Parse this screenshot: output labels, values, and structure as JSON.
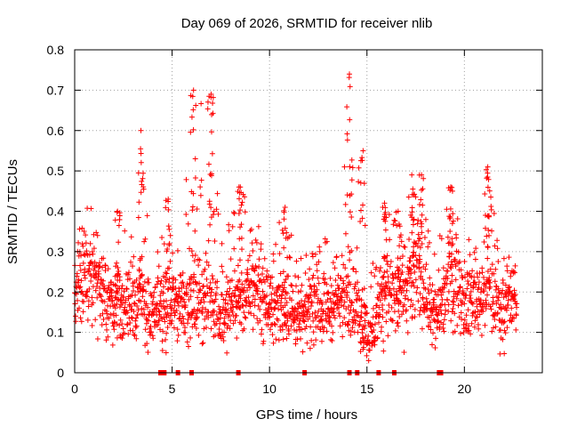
{
  "chart_data": {
    "type": "scatter",
    "title": "Day 069 of 2026, SRMTID for receiver nlib",
    "xlabel": "GPS time / hours",
    "ylabel": "SRMTID / TECUs",
    "xlim": [
      0,
      24
    ],
    "ylim": [
      0,
      0.8
    ],
    "xticks": [
      0,
      5,
      10,
      15,
      20
    ],
    "yticks": [
      0,
      0.1,
      0.2,
      0.3,
      0.4,
      0.5,
      0.6,
      0.7,
      0.8
    ],
    "xtick_labels": [
      "0",
      "5",
      "10",
      "15",
      "20"
    ],
    "ytick_labels": [
      "0",
      "0.1",
      "0.2",
      "0.3",
      "0.4",
      "0.5",
      "0.6",
      "0.7",
      "0.8"
    ],
    "grid": true,
    "marker": "+",
    "color": "#ff0000",
    "zero_markers_x": [
      4.4,
      4.6,
      5.3,
      6.0,
      8.4,
      11.8,
      14.1,
      14.5,
      15.6,
      16.4,
      18.7,
      18.8
    ],
    "envelope": [
      {
        "x": 0.0,
        "base": 0.2,
        "spread": 0.08,
        "peak": 0.32
      },
      {
        "x": 0.7,
        "base": 0.24,
        "spread": 0.09,
        "peak": 0.43
      },
      {
        "x": 1.5,
        "base": 0.18,
        "spread": 0.07,
        "peak": 0.3
      },
      {
        "x": 2.2,
        "base": 0.17,
        "spread": 0.07,
        "peak": 0.4
      },
      {
        "x": 3.0,
        "base": 0.17,
        "spread": 0.07,
        "peak": 0.33
      },
      {
        "x": 3.4,
        "base": 0.19,
        "spread": 0.08,
        "peak": 0.6
      },
      {
        "x": 4.0,
        "base": 0.13,
        "spread": 0.06,
        "peak": 0.25
      },
      {
        "x": 4.8,
        "base": 0.16,
        "spread": 0.07,
        "peak": 0.43
      },
      {
        "x": 5.5,
        "base": 0.18,
        "spread": 0.07,
        "peak": 0.35
      },
      {
        "x": 6.1,
        "base": 0.19,
        "spread": 0.08,
        "peak": 0.7
      },
      {
        "x": 7.0,
        "base": 0.18,
        "spread": 0.08,
        "peak": 0.69
      },
      {
        "x": 7.6,
        "base": 0.14,
        "spread": 0.06,
        "peak": 0.32
      },
      {
        "x": 8.5,
        "base": 0.19,
        "spread": 0.07,
        "peak": 0.46
      },
      {
        "x": 9.3,
        "base": 0.2,
        "spread": 0.08,
        "peak": 0.38
      },
      {
        "x": 10.2,
        "base": 0.15,
        "spread": 0.06,
        "peak": 0.35
      },
      {
        "x": 10.8,
        "base": 0.18,
        "spread": 0.07,
        "peak": 0.41
      },
      {
        "x": 11.5,
        "base": 0.12,
        "spread": 0.05,
        "peak": 0.3
      },
      {
        "x": 12.3,
        "base": 0.17,
        "spread": 0.07,
        "peak": 0.3
      },
      {
        "x": 13.0,
        "base": 0.16,
        "spread": 0.06,
        "peak": 0.35
      },
      {
        "x": 13.5,
        "base": 0.18,
        "spread": 0.06,
        "peak": 0.3
      },
      {
        "x": 14.1,
        "base": 0.2,
        "spread": 0.08,
        "peak": 0.74
      },
      {
        "x": 14.8,
        "base": 0.12,
        "spread": 0.06,
        "peak": 0.55
      },
      {
        "x": 15.2,
        "base": 0.08,
        "spread": 0.04,
        "peak": 0.26
      },
      {
        "x": 15.9,
        "base": 0.2,
        "spread": 0.08,
        "peak": 0.42
      },
      {
        "x": 16.6,
        "base": 0.18,
        "spread": 0.08,
        "peak": 0.4
      },
      {
        "x": 17.3,
        "base": 0.23,
        "spread": 0.09,
        "peak": 0.49
      },
      {
        "x": 17.8,
        "base": 0.24,
        "spread": 0.09,
        "peak": 0.49
      },
      {
        "x": 18.5,
        "base": 0.13,
        "spread": 0.06,
        "peak": 0.3
      },
      {
        "x": 19.3,
        "base": 0.24,
        "spread": 0.09,
        "peak": 0.46
      },
      {
        "x": 19.9,
        "base": 0.18,
        "spread": 0.07,
        "peak": 0.33
      },
      {
        "x": 20.6,
        "base": 0.18,
        "spread": 0.07,
        "peak": 0.34
      },
      {
        "x": 21.2,
        "base": 0.22,
        "spread": 0.08,
        "peak": 0.51
      },
      {
        "x": 21.8,
        "base": 0.14,
        "spread": 0.06,
        "peak": 0.32
      },
      {
        "x": 22.5,
        "base": 0.18,
        "spread": 0.07,
        "peak": 0.28
      },
      {
        "x": 22.7,
        "base": 0.16,
        "spread": 0.06,
        "peak": 0.26
      }
    ]
  }
}
